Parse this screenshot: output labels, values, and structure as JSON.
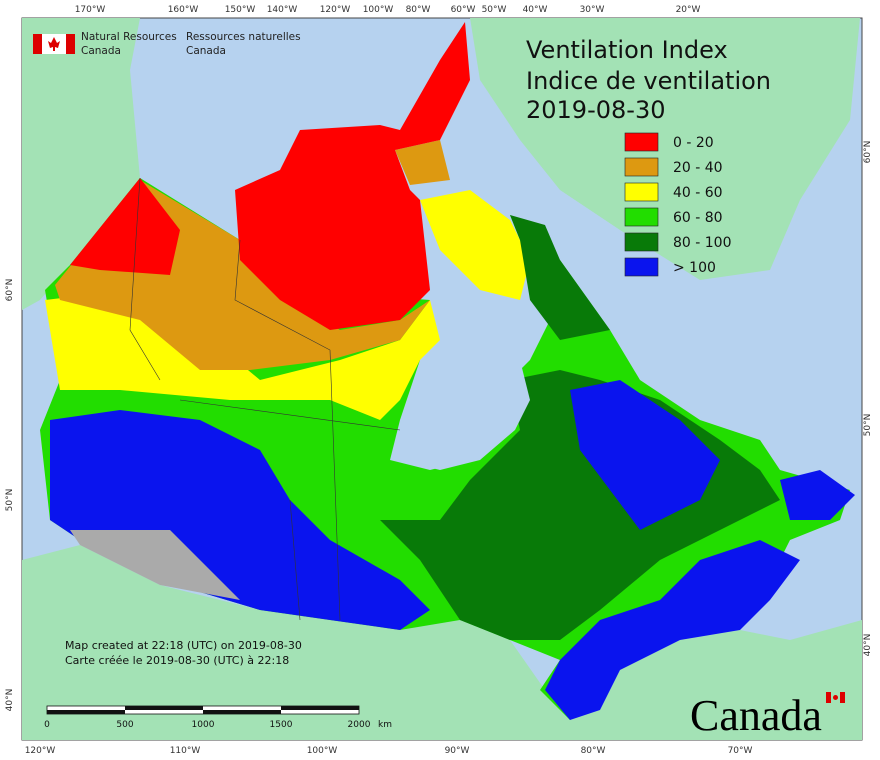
{
  "title": {
    "en": "Ventilation Index",
    "fr": "Indice de ventilation",
    "date": "2019-08-30"
  },
  "agency": {
    "en_line1": "Natural Resources",
    "en_line2": "Canada",
    "fr_line1": "Ressources naturelles",
    "fr_line2": "Canada"
  },
  "legend": [
    {
      "label": "0 - 20",
      "color": "#ff0000"
    },
    {
      "label": "20 - 40",
      "color": "#dd9911"
    },
    {
      "label": "40 - 60",
      "color": "#ffff00"
    },
    {
      "label": "60 - 80",
      "color": "#22dd00"
    },
    {
      "label": "80 - 100",
      "color": "#087a08"
    },
    {
      "label": "> 100",
      "color": "#0a14ee"
    }
  ],
  "credits": [
    "Map created at 22:18 (UTC) on 2019-08-30",
    "Carte créée le 2019-08-30 (UTC) à 22:18"
  ],
  "scale_bar": {
    "labels": [
      "0",
      "500",
      "1000",
      "1500",
      "2000"
    ],
    "unit": "km"
  },
  "top_labels": [
    "170°W",
    "160°W",
    "150°W",
    "140°W",
    "120°W",
    "100°W",
    "80°W",
    "60°W",
    "50°W",
    "40°W",
    "30°W",
    "20°W"
  ],
  "bottom_labels": [
    "120°W",
    "110°W",
    "100°W",
    "90°W",
    "80°W",
    "70°W"
  ],
  "left_labels": [
    "60°N",
    "50°N",
    "40°N"
  ],
  "right_labels": [
    "60°N",
    "50°N",
    "40°N"
  ],
  "wordmark": "Canada"
}
